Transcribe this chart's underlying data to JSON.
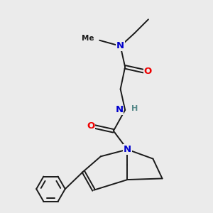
{
  "background_color": "#ebebeb",
  "atom_colors": {
    "N": "#0000cc",
    "O": "#ee0000",
    "H": "#558888",
    "C": "#1a1a1a"
  },
  "line_width": 1.4,
  "line_color": "#1a1a1a",
  "font_size": 9.5
}
